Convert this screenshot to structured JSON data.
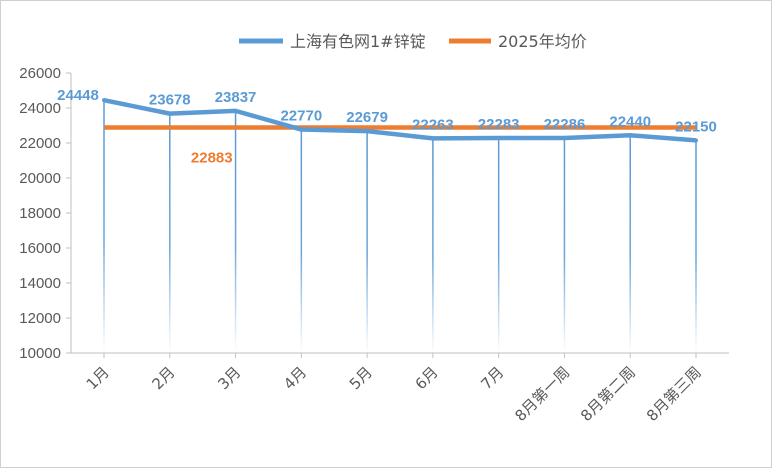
{
  "chart_data": {
    "type": "line",
    "categories": [
      "1月",
      "2月",
      "3月",
      "4月",
      "5月",
      "6月",
      "7月",
      "8月第一周",
      "8月第二周",
      "8月第三周"
    ],
    "series": [
      {
        "name": "上海有色网1#锌锭",
        "values": [
          24448,
          23678,
          23837,
          22770,
          22679,
          22263,
          22283,
          22286,
          22440,
          22150
        ],
        "color": "#5b9bd5"
      },
      {
        "name": "2025年均价",
        "values": [
          22883,
          22883,
          22883,
          22883,
          22883,
          22883,
          22883,
          22883,
          22883,
          22883
        ],
        "color": "#ed7d31",
        "label": "22883"
      }
    ],
    "y_ticks": [
      "10000",
      "12000",
      "14000",
      "16000",
      "18000",
      "20000",
      "22000",
      "24000",
      "26000"
    ],
    "ylim": [
      10000,
      26000
    ],
    "legend": "top",
    "grid": false,
    "drop_lines": true
  }
}
